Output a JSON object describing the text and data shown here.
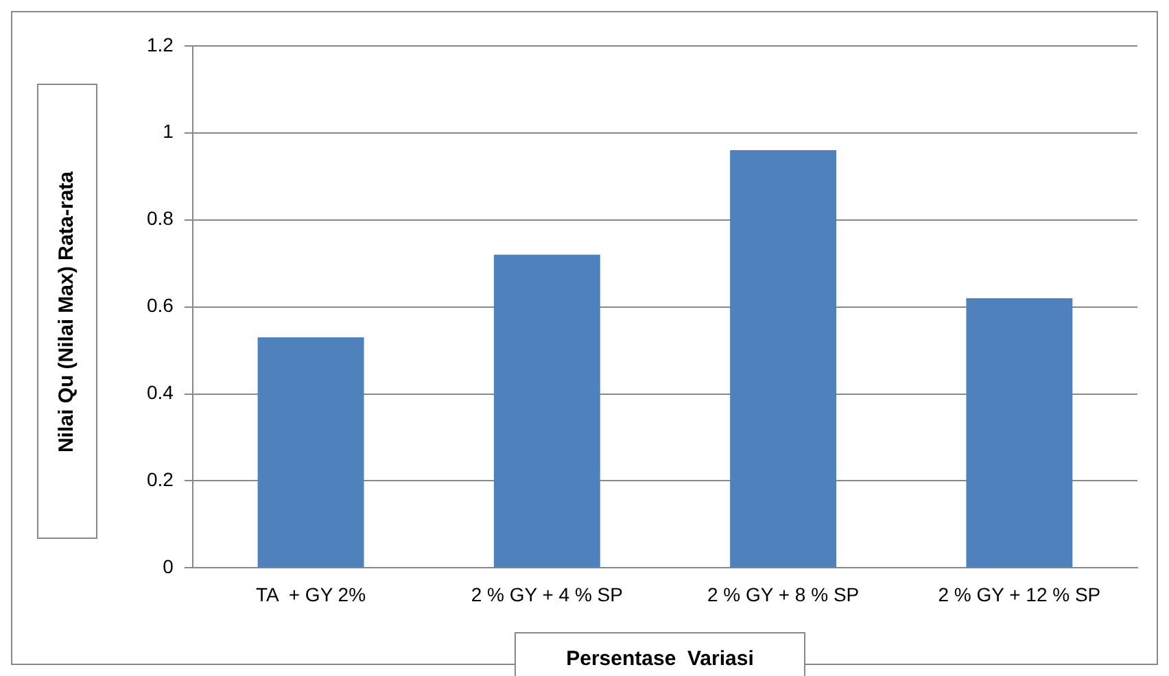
{
  "chart_data": {
    "type": "bar",
    "xlabel": "Persentase  Variasi",
    "ylabel": "Nilai Qu (Nilai Max) Rata-rata",
    "categories": [
      "TA  + GY 2%",
      "2 % GY + 4 % SP",
      "2 % GY + 8 % SP",
      "2 % GY + 12 % SP"
    ],
    "values": [
      0.53,
      0.72,
      0.96,
      0.62
    ],
    "color": "#4f81bd",
    "ylim": [
      0,
      1.2
    ],
    "yticks": [
      0,
      0.2,
      0.4,
      0.6,
      0.8,
      1,
      1.2
    ],
    "grid": "y",
    "legend": false
  }
}
